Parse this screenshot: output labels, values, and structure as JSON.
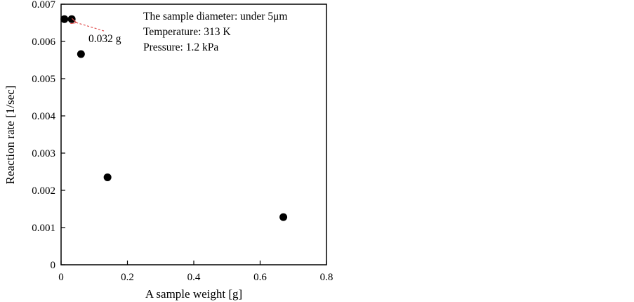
{
  "chart_data": {
    "type": "scatter",
    "title": "",
    "xlabel": "A sample weight [g]",
    "ylabel": "Reaction rate [1/sec]",
    "xlim": [
      0,
      0.8
    ],
    "ylim": [
      0,
      0.007
    ],
    "x_ticks": [
      "0",
      "0.2",
      "0.4",
      "0.6",
      "0.8"
    ],
    "x_tick_values": [
      0,
      0.2,
      0.4,
      0.6,
      0.8
    ],
    "y_ticks": [
      "0",
      "0.001",
      "0.002",
      "0.003",
      "0.004",
      "0.005",
      "0.006",
      "0.007"
    ],
    "y_tick_values": [
      0,
      0.001,
      0.002,
      0.003,
      0.004,
      0.005,
      0.006,
      0.007
    ],
    "grid": false,
    "series": [
      {
        "points": [
          {
            "x": 0.01,
            "y": 0.0066
          },
          {
            "x": 0.032,
            "y": 0.0066
          },
          {
            "x": 0.06,
            "y": 0.00566
          },
          {
            "x": 0.14,
            "y": 0.00235
          },
          {
            "x": 0.67,
            "y": 0.00128
          }
        ],
        "color": "#000000"
      }
    ],
    "annotations": {
      "conditions": [
        "The sample diameter: under 5μm",
        "Temperature: 313 K",
        "Pressure: 1.2 kPa"
      ],
      "point_label": "0.032 g",
      "arrow_color": "#e05050"
    }
  }
}
